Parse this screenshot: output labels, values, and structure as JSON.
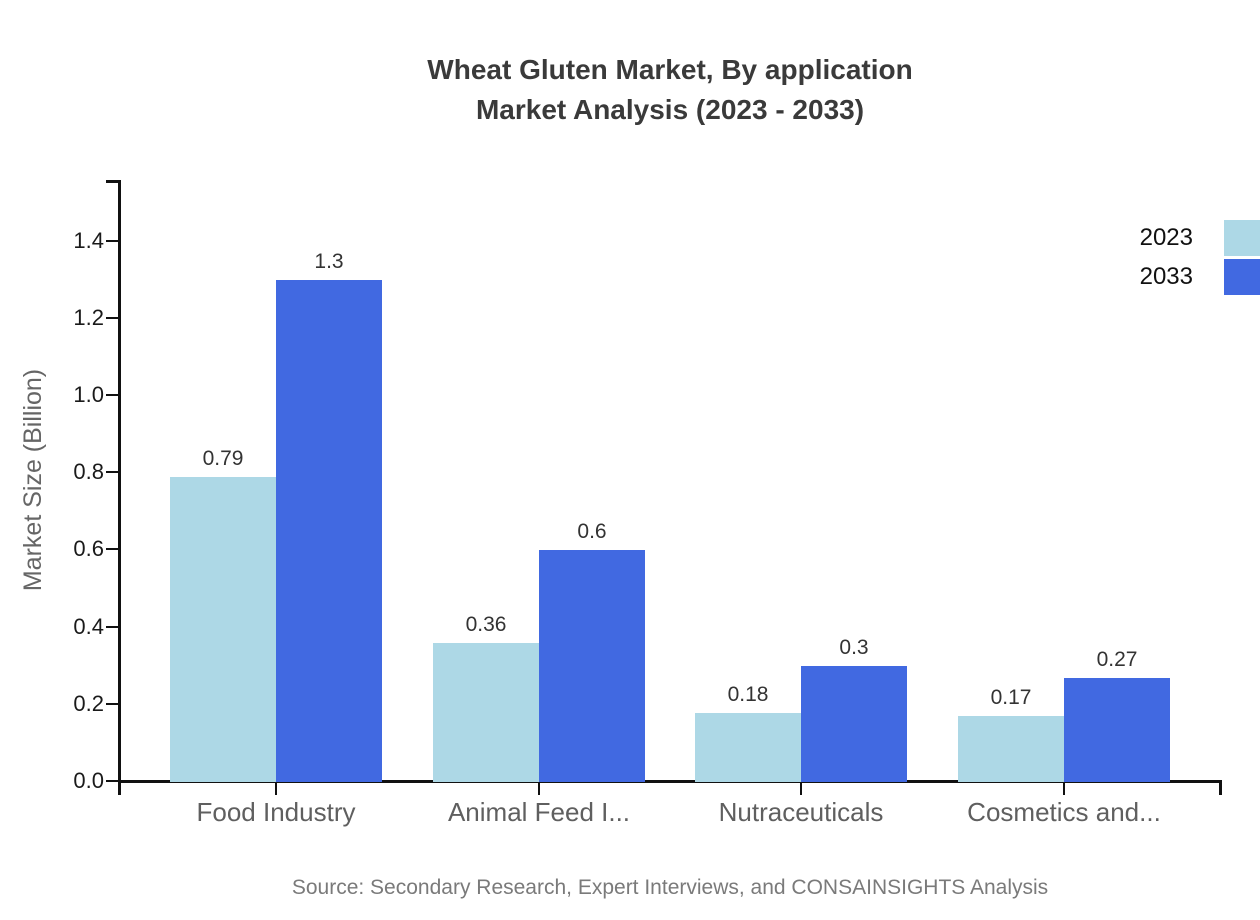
{
  "title": {
    "line1": "Wheat Gluten Market, By application",
    "line2": "Market Analysis (2023 - 2033)"
  },
  "source_note": "Source: Secondary Research, Expert Interviews, and CONSAINSIGHTS Analysis",
  "colors": {
    "series_2023": "#ADD8E6",
    "series_2033": "#4169E1",
    "axis": "#111111",
    "title_text": "#3a3a3a",
    "axis_label_text": "#666666",
    "category_text": "#5f5f5f",
    "source_text": "#7a7a7a"
  },
  "legend": {
    "items": [
      {
        "label": "2023",
        "color": "#ADD8E6"
      },
      {
        "label": "2033",
        "color": "#4169E1"
      }
    ]
  },
  "chart_data": {
    "type": "bar",
    "title": "Wheat Gluten Market, By application Market Analysis (2023 - 2033)",
    "xlabel": "",
    "ylabel": "Market Size (Billion)",
    "categories": [
      "Food Industry",
      "Animal Feed I...",
      "Nutraceuticals",
      "Cosmetics and..."
    ],
    "series": [
      {
        "name": "2023",
        "color": "#ADD8E6",
        "values": [
          0.79,
          0.36,
          0.18,
          0.17
        ]
      },
      {
        "name": "2033",
        "color": "#4169E1",
        "values": [
          1.3,
          0.6,
          0.3,
          0.27
        ]
      }
    ],
    "ylim": [
      0,
      1.55
    ],
    "yticks": [
      0.0,
      0.2,
      0.4,
      0.6,
      0.8,
      1.0,
      1.2,
      1.4
    ],
    "grid": false,
    "legend_position": "top-right",
    "value_labels_shown": true
  }
}
